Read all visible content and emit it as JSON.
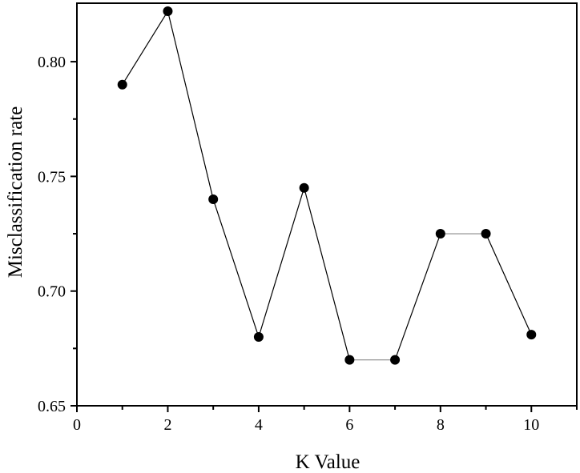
{
  "chart_data": {
    "type": "line",
    "title": "",
    "xlabel": "K Value",
    "ylabel": "Misclassification rate",
    "xlim": [
      0,
      11
    ],
    "ylim": [
      0.65,
      0.8255
    ],
    "x_ticks": [
      0,
      2,
      4,
      6,
      8,
      10
    ],
    "x_tick_labels": [
      "0",
      "2",
      "4",
      "6",
      "8",
      "10"
    ],
    "x_minor_ticks": [
      1,
      3,
      5,
      7,
      9,
      11
    ],
    "y_ticks": [
      0.65,
      0.7,
      0.75,
      0.8
    ],
    "y_tick_labels": [
      "0.65",
      "0.70",
      "0.75",
      "0.80"
    ],
    "y_minor_ticks": [
      0.675,
      0.725,
      0.775
    ],
    "grid": false,
    "legend": null,
    "series": [
      {
        "name": "Misclassification rate",
        "marker": "circle",
        "color": "#000000",
        "x": [
          1,
          2,
          3,
          4,
          5,
          6,
          7,
          8,
          9,
          10
        ],
        "values": [
          0.79,
          0.822,
          0.74,
          0.68,
          0.745,
          0.67,
          0.67,
          0.725,
          0.725,
          0.681
        ]
      }
    ]
  },
  "style": {
    "line_color": "#000000",
    "flat_segment_color": "#888888",
    "marker_color": "#000000",
    "axis_color": "#000000"
  }
}
